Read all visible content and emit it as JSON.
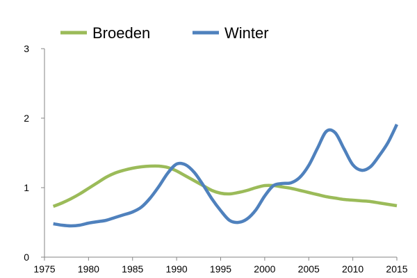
{
  "chart_data": {
    "type": "line",
    "title": "",
    "xlabel": "",
    "ylabel": "",
    "xlim": [
      1975,
      2015
    ],
    "ylim": [
      0,
      3
    ],
    "x_ticks": [
      1975,
      1980,
      1985,
      1990,
      1995,
      2000,
      2005,
      2010,
      2015
    ],
    "y_ticks": [
      0,
      1,
      2,
      3
    ],
    "x_tick_labels": [
      "1975",
      "1980",
      "1985",
      "1990",
      "1995",
      "2000",
      "2005",
      "2010",
      "2015"
    ],
    "y_tick_labels": [
      "0",
      "1",
      "2",
      "3"
    ],
    "grid": false,
    "legend_position": "top",
    "x": [
      1976,
      1977,
      1978,
      1979,
      1980,
      1981,
      1982,
      1983,
      1984,
      1985,
      1986,
      1987,
      1988,
      1989,
      1990,
      1991,
      1992,
      1993,
      1994,
      1995,
      1996,
      1997,
      1998,
      1999,
      2000,
      2001,
      2002,
      2003,
      2004,
      2005,
      2006,
      2007,
      2008,
      2009,
      2010,
      2011,
      2012,
      2013,
      2014,
      2015
    ],
    "series": [
      {
        "name": "Broeden",
        "color": "#9BBB59",
        "values": [
          0.73,
          0.78,
          0.84,
          0.91,
          0.99,
          1.07,
          1.15,
          1.21,
          1.25,
          1.28,
          1.3,
          1.31,
          1.31,
          1.29,
          1.24,
          1.17,
          1.1,
          1.03,
          0.96,
          0.92,
          0.91,
          0.93,
          0.96,
          1.0,
          1.03,
          1.03,
          1.01,
          0.99,
          0.96,
          0.93,
          0.9,
          0.87,
          0.85,
          0.83,
          0.82,
          0.81,
          0.8,
          0.78,
          0.76,
          0.74
        ]
      },
      {
        "name": "Winter",
        "color": "#4F81BD",
        "values": [
          0.48,
          0.46,
          0.45,
          0.46,
          0.49,
          0.51,
          0.53,
          0.57,
          0.61,
          0.65,
          0.72,
          0.85,
          1.02,
          1.21,
          1.34,
          1.33,
          1.22,
          1.04,
          0.84,
          0.67,
          0.53,
          0.5,
          0.55,
          0.68,
          0.88,
          1.03,
          1.06,
          1.07,
          1.15,
          1.32,
          1.57,
          1.81,
          1.79,
          1.56,
          1.33,
          1.25,
          1.3,
          1.46,
          1.65,
          1.91
        ]
      }
    ]
  }
}
